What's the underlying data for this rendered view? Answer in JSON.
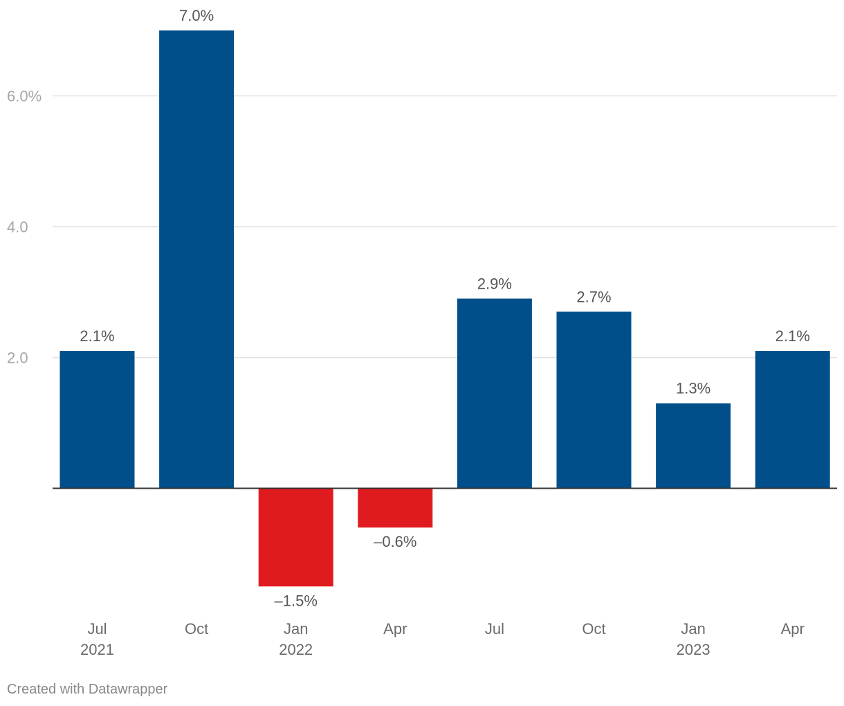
{
  "chart_data": {
    "type": "bar",
    "title": "",
    "xlabel": "",
    "ylabel": "",
    "categories": [
      "Jul 2021",
      "Oct 2021",
      "Jan 2022",
      "Apr 2022",
      "Jul 2022",
      "Oct 2022",
      "Jan 2023",
      "Apr 2023"
    ],
    "tick_labels": [
      {
        "line1": "Jul",
        "line2": "2021"
      },
      {
        "line1": "Oct",
        "line2": ""
      },
      {
        "line1": "Jan",
        "line2": "2022"
      },
      {
        "line1": "Apr",
        "line2": ""
      },
      {
        "line1": "Jul",
        "line2": ""
      },
      {
        "line1": "Oct",
        "line2": ""
      },
      {
        "line1": "Jan",
        "line2": "2023"
      },
      {
        "line1": "Apr",
        "line2": ""
      }
    ],
    "values": [
      2.1,
      7.0,
      -1.5,
      -0.6,
      2.9,
      2.7,
      1.3,
      2.1
    ],
    "data_labels": [
      "2.1%",
      "7.0%",
      "–1.5%",
      "–0.6%",
      "2.9%",
      "2.7%",
      "1.3%",
      "2.1%"
    ],
    "ylim": [
      -1.85,
      7.0
    ],
    "yticks": [
      {
        "value": 2,
        "label": "2.0"
      },
      {
        "value": 4,
        "label": "4.0"
      },
      {
        "value": 6,
        "label": "6.0%"
      }
    ],
    "grid": true,
    "colors": {
      "positive": "#004f8a",
      "negative": "#e01b1f"
    }
  },
  "footer": {
    "credit": "Created with Datawrapper"
  }
}
